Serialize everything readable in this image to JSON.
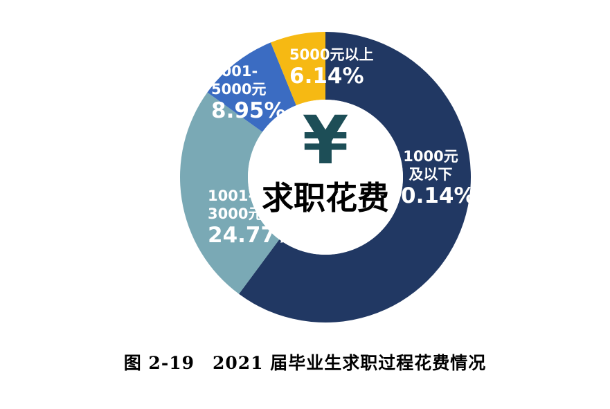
{
  "chart_data": {
    "type": "pie",
    "donut": true,
    "center_label": "求职花费",
    "center_icon": "yen-icon",
    "slices": [
      {
        "label_lines": [
          "1000元",
          "及以下"
        ],
        "percent": 60.14,
        "percent_text": "60.14%",
        "color": "#213863"
      },
      {
        "label_lines": [
          "1001-",
          "3000元"
        ],
        "percent": 24.77,
        "percent_text": "24.77%",
        "color": "#7aa9b5"
      },
      {
        "label_lines": [
          "3001-",
          "5000元"
        ],
        "percent": 8.95,
        "percent_text": "8.95%",
        "color": "#3b6cc2"
      },
      {
        "label_lines": [
          "5000元以上"
        ],
        "percent": 6.14,
        "percent_text": "6.14%",
        "color": "#f6b913"
      }
    ]
  },
  "caption": {
    "figure_no": "图 2-19",
    "text": "2021 届毕业生求职过程花费情况"
  }
}
